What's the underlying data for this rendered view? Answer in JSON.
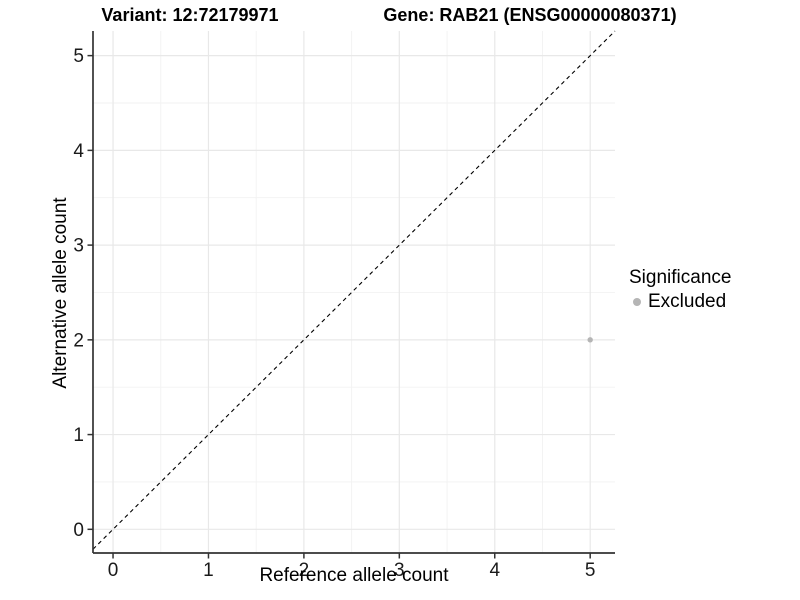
{
  "figure": {
    "background": "#ffffff"
  },
  "chart_data": {
    "type": "scatter",
    "titles": {
      "left": "Variant: 12:72179971",
      "right": "Gene: RAB21 (ENSG00000080371)"
    },
    "xlabel": "Reference allele count",
    "ylabel": "Alternative allele count",
    "xticks": [
      0,
      1,
      2,
      3,
      4,
      5
    ],
    "yticks": [
      0,
      1,
      2,
      3,
      4,
      5
    ],
    "xlim": [
      -0.21,
      5.26
    ],
    "ylim": [
      -0.25,
      5.26
    ],
    "grid": {
      "major": true,
      "minor": true,
      "major_color": "#e8e8e8",
      "minor_color": "#f2f2f2"
    },
    "axis_color": "#333333",
    "tick_label_color": "#1a1a1a",
    "reference_line": {
      "slope": 1,
      "intercept": 0,
      "style": "dashed",
      "color": "#000000"
    },
    "points": [
      {
        "x": 5,
        "y": 2,
        "significance": "Excluded",
        "color": "#b5b5b5",
        "radius": 2.7
      }
    ],
    "legend": {
      "title": "Significance",
      "position": "right",
      "items": [
        {
          "label": "Excluded",
          "color": "#b5b5b5"
        }
      ]
    }
  }
}
